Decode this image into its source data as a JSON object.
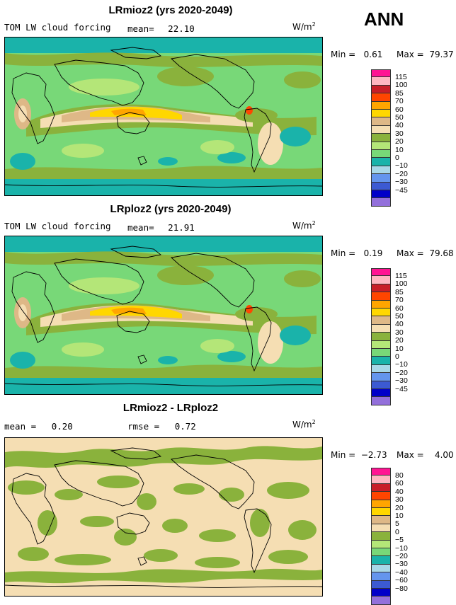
{
  "header": {
    "season": "ANN"
  },
  "panels": [
    {
      "title": "LRmioz2 (yrs 2020-2049)",
      "variable": "TOM LW cloud forcing",
      "stat_label": "mean=",
      "stat_value": "22.10",
      "units_base": "W/m",
      "units_exp": "2",
      "min_label": "Min =",
      "min_value": "0.61",
      "max_label": "Max =",
      "max_value": "79.37",
      "colorbar": {
        "levels": [
          "115",
          "100",
          "85",
          "70",
          "60",
          "50",
          "40",
          "30",
          "20",
          "10",
          "0",
          "−10",
          "−20",
          "−30",
          "−45"
        ],
        "colors": [
          "#ff1493",
          "#ffb6c1",
          "#c81e28",
          "#ff4500",
          "#ffa500",
          "#ffd700",
          "#deb887",
          "#f5deb3",
          "#8ab23c",
          "#b4e678",
          "#78d878",
          "#1ab3aa",
          "#a8d8e8",
          "#6495ed",
          "#3c5ad2",
          "#0000c8",
          "#9370db"
        ]
      }
    },
    {
      "title": "LRploz2 (yrs 2020-2049)",
      "variable": "TOM LW cloud forcing",
      "stat_label": "mean=",
      "stat_value": "21.91",
      "units_base": "W/m",
      "units_exp": "2",
      "min_label": "Min =",
      "min_value": "0.19",
      "max_label": "Max =",
      "max_value": "79.68",
      "colorbar": {
        "levels": [
          "115",
          "100",
          "85",
          "70",
          "60",
          "50",
          "40",
          "30",
          "20",
          "10",
          "0",
          "−10",
          "−20",
          "−30",
          "−45"
        ],
        "colors": [
          "#ff1493",
          "#ffb6c1",
          "#c81e28",
          "#ff4500",
          "#ffa500",
          "#ffd700",
          "#deb887",
          "#f5deb3",
          "#8ab23c",
          "#b4e678",
          "#78d878",
          "#1ab3aa",
          "#a8d8e8",
          "#6495ed",
          "#3c5ad2",
          "#0000c8",
          "#9370db"
        ]
      }
    },
    {
      "title": "LRmioz2 - LRploz2",
      "stat_label": "mean =",
      "stat_value": "0.20",
      "rmse_label": "rmse =",
      "rmse_value": "0.72",
      "units_base": "W/m",
      "units_exp": "2",
      "min_label": "Min =",
      "min_value": "−2.73",
      "max_label": "Max =",
      "max_value": "4.00",
      "colorbar": {
        "levels": [
          "80",
          "60",
          "40",
          "30",
          "20",
          "10",
          "5",
          "0",
          "−5",
          "−10",
          "−20",
          "−30",
          "−40",
          "−60",
          "−80"
        ],
        "colors": [
          "#ff1493",
          "#ffb6c1",
          "#c81e28",
          "#ff4500",
          "#ffa500",
          "#ffd700",
          "#deb887",
          "#f5deb3",
          "#8ab23c",
          "#b4e678",
          "#78d878",
          "#1ab3aa",
          "#a8d8e8",
          "#6495ed",
          "#3c5ad2",
          "#0000c8",
          "#9370db"
        ]
      }
    }
  ]
}
